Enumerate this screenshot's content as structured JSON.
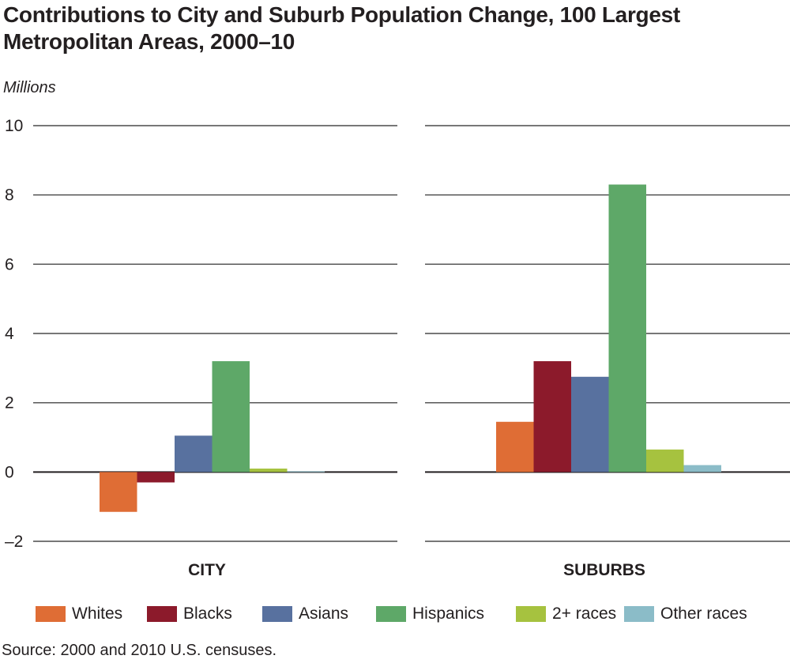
{
  "title_line1": "Contributions to City and Suburb Population Change, 100 Largest",
  "title_line2": "Metropolitan Areas, 2000–10",
  "units": "Millions",
  "source": "Source: 2000 and 2010 U.S. censuses.",
  "chart_data": {
    "type": "bar",
    "title": "Contributions to City and Suburb Population Change, 100 Largest Metropolitan Areas, 2000–10",
    "ylabel": "Millions",
    "ylim": [
      -2,
      10
    ],
    "yticks": [
      10,
      8,
      6,
      4,
      2,
      0,
      -2
    ],
    "ytick_labels": [
      "10",
      "8",
      "6",
      "4",
      "2",
      "0",
      "–2"
    ],
    "grid": true,
    "legend_position": "bottom",
    "categories": [
      "CITY",
      "SUBURBS"
    ],
    "series": [
      {
        "name": "Whites",
        "color": "#df6d35",
        "values": [
          -1.15,
          1.45
        ]
      },
      {
        "name": "Blacks",
        "color": "#8c1a2b",
        "values": [
          -0.3,
          3.2
        ]
      },
      {
        "name": "Asians",
        "color": "#58719f",
        "values": [
          1.05,
          2.75
        ]
      },
      {
        "name": "Hispanics",
        "color": "#5ea868",
        "values": [
          3.2,
          8.3
        ]
      },
      {
        "name": "2+ races",
        "color": "#a6c23f",
        "values": [
          0.1,
          0.65
        ]
      },
      {
        "name": "Other races",
        "color": "#8bbcc8",
        "values": [
          0.02,
          0.2
        ]
      }
    ]
  }
}
